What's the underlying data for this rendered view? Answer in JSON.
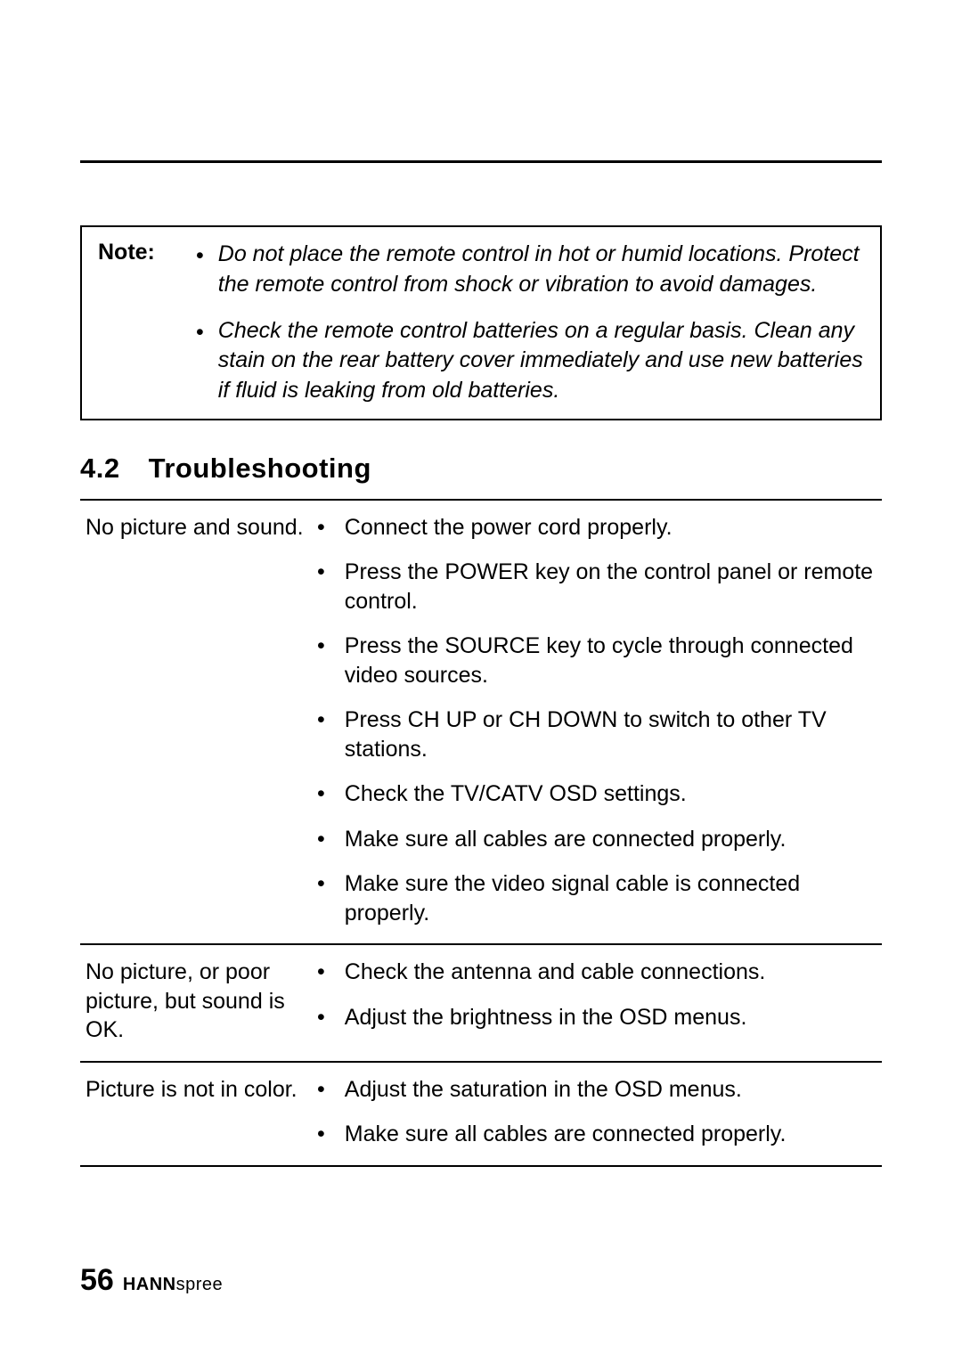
{
  "colors": {
    "text": "#000000",
    "background": "#ffffff",
    "rule": "#000000"
  },
  "typography": {
    "body_fontsize_pt": 19,
    "heading_fontsize_pt": 23,
    "note_italic": true,
    "font_family": "Arial"
  },
  "note": {
    "label": "Note:",
    "items": [
      "Do not place the remote control in hot or humid locations. Protect the remote control from shock or vibration to avoid damages.",
      "Check the remote control batteries on a regular basis. Clean any stain on the rear battery cover immediately and use new batteries if fluid is leaking from old batteries."
    ]
  },
  "section": {
    "number": "4.2",
    "title": "Troubleshooting"
  },
  "troubleshooting": {
    "rows": [
      {
        "problem": "No picture and sound.",
        "solutions": [
          "Connect the power cord properly.",
          "Press the POWER key on the control panel or remote control.",
          "Press the SOURCE key to cycle through connected video sources.",
          "Press CH UP or CH DOWN to switch to other TV stations.",
          "Check the TV/CATV OSD settings.",
          "Make sure all cables are connected properly.",
          "Make sure the video signal cable is connected properly."
        ]
      },
      {
        "problem": "No picture, or poor picture, but sound is OK.",
        "solutions": [
          "Check the antenna and cable connections.",
          "Adjust the brightness in the OSD menus."
        ]
      },
      {
        "problem": "Picture is not in color.",
        "solutions": [
          "Adjust the saturation in the OSD menus.",
          "Make sure all cables are connected properly."
        ]
      }
    ]
  },
  "footer": {
    "page_number": "56",
    "brand_bold": "HANN",
    "brand_light": "spree"
  }
}
